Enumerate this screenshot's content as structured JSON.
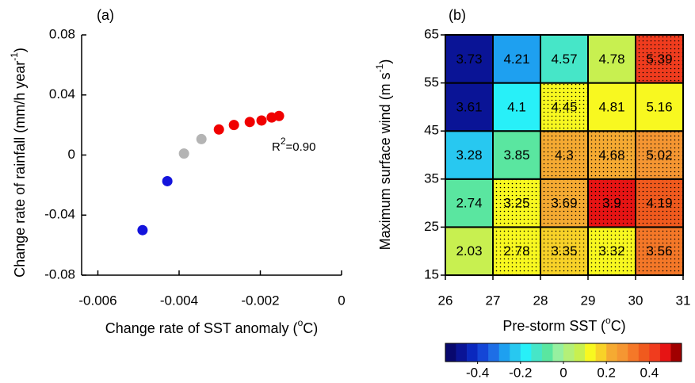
{
  "chart_data": [
    {
      "type": "scatter",
      "label": "(a)",
      "xlabel": [
        "Change rate of SST anomaly (",
        "o",
        "C)"
      ],
      "ylabel": [
        "Change rate of rainfall (mm/h year",
        "-1",
        ")"
      ],
      "annotation": [
        "R",
        "2",
        "=0.90"
      ],
      "xlim": [
        -0.0064,
        0
      ],
      "xticks": [
        -0.006,
        -0.004,
        -0.002,
        0
      ],
      "ylim": [
        -0.08,
        0.08
      ],
      "yticks": [
        -0.08,
        -0.04,
        0,
        0.04,
        0.08
      ],
      "series": [
        {
          "color": "#1414dc",
          "x": [
            -0.0049,
            -0.00429
          ],
          "values": [
            -0.05,
            -0.0174
          ]
        },
        {
          "color": "#b4b4b4",
          "x": [
            -0.00388,
            -0.00345
          ],
          "values": [
            0.001,
            0.0106
          ]
        },
        {
          "color": "#f00000",
          "x": [
            -0.00302,
            -0.00265,
            -0.00226,
            -0.00197,
            -0.00172,
            -0.00154
          ],
          "values": [
            0.017,
            0.02,
            0.022,
            0.023,
            0.025,
            0.026
          ]
        }
      ]
    },
    {
      "type": "heatmap",
      "label": "(b)",
      "xlabel": [
        "Pre-storm SST (",
        "o",
        "C)"
      ],
      "ylabel": [
        "Maximum surface wind (m s",
        "-1",
        ")"
      ],
      "xlim": [
        26,
        31
      ],
      "xticks": [
        26,
        27,
        28,
        29,
        30,
        31
      ],
      "ylim": [
        15,
        65
      ],
      "yticks": [
        15,
        25,
        35,
        45,
        55,
        65
      ],
      "values": [
        [
          2.03,
          2.78,
          3.35,
          3.32,
          3.56
        ],
        [
          2.74,
          3.25,
          3.69,
          3.9,
          4.19
        ],
        [
          3.28,
          3.85,
          4.3,
          4.68,
          5.02
        ],
        [
          3.61,
          4.1,
          4.45,
          4.81,
          5.16
        ],
        [
          3.73,
          4.21,
          4.57,
          4.78,
          5.39
        ]
      ],
      "color_values": [
        [
          0.05,
          0.1,
          0.17,
          0.12,
          0.3
        ],
        [
          -0.1,
          0.1,
          0.22,
          0.45,
          0.35
        ],
        [
          -0.25,
          -0.1,
          0.22,
          0.22,
          0.25
        ],
        [
          -0.5,
          -0.2,
          0.1,
          0.1,
          0.12
        ],
        [
          -0.5,
          -0.3,
          -0.15,
          0.05,
          0.4
        ]
      ],
      "stipple": [
        [
          false,
          true,
          true,
          true,
          true
        ],
        [
          false,
          true,
          true,
          true,
          true
        ],
        [
          false,
          false,
          true,
          true,
          true
        ],
        [
          false,
          false,
          true,
          false,
          false
        ],
        [
          false,
          false,
          false,
          false,
          true
        ]
      ],
      "colorbar": {
        "lim": [
          -0.55,
          0.55
        ],
        "ticks": [
          -0.4,
          -0.2,
          0,
          0.2,
          0.4
        ],
        "colors": [
          "#08086e",
          "#0a1496",
          "#0a28be",
          "#1446d7",
          "#1e6ee6",
          "#1ea0f0",
          "#28c8f0",
          "#28f0f8",
          "#46e6c8",
          "#5ae6a0",
          "#96f0a0",
          "#b4f078",
          "#c8f050",
          "#f8f820",
          "#f8d228",
          "#f5aa32",
          "#f59632",
          "#f57828",
          "#f05a1e",
          "#f03c1e",
          "#e61414",
          "#a00000"
        ]
      }
    }
  ]
}
